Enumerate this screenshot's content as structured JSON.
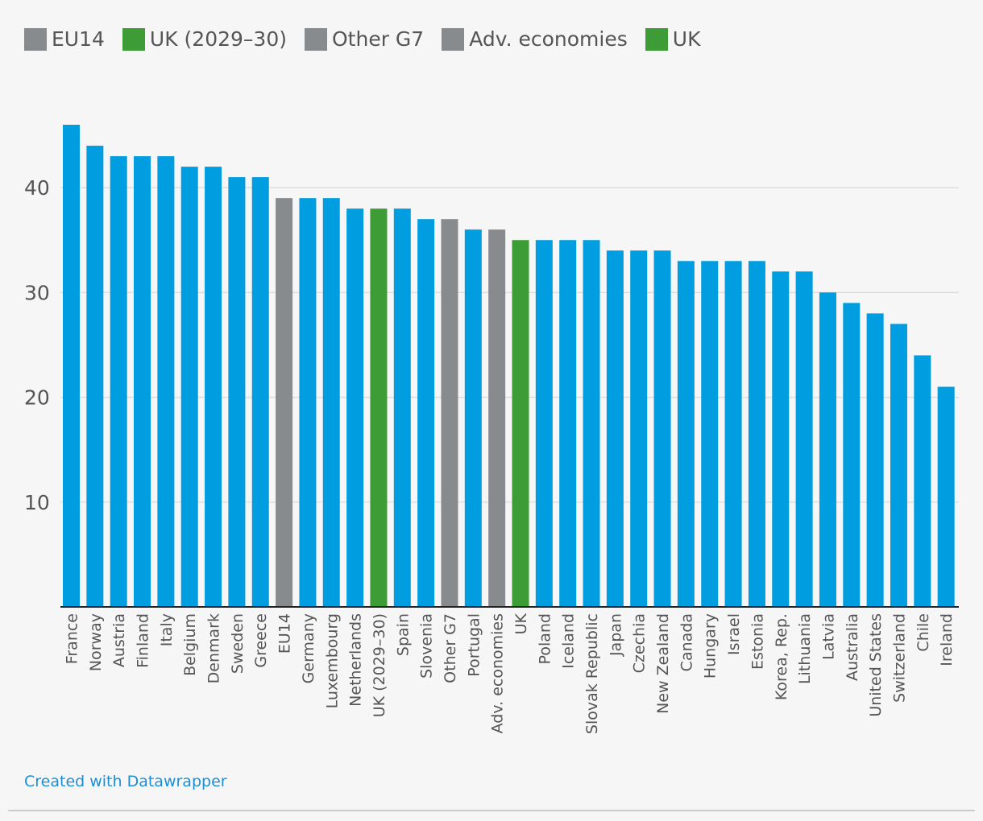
{
  "legend": [
    {
      "label": "EU14",
      "color": "#888b8e"
    },
    {
      "label": "UK (2029–30)",
      "color": "#3e9c36"
    },
    {
      "label": "Other G7",
      "color": "#888b8e"
    },
    {
      "label": "Adv. economies",
      "color": "#888b8e"
    },
    {
      "label": "UK",
      "color": "#3e9c36"
    }
  ],
  "colors": {
    "default": "#009ee0",
    "gray": "#888b8e",
    "green": "#3e9c36",
    "grid": "#dedede",
    "axis": "#222222",
    "tick": "#555555"
  },
  "chart_data": {
    "type": "bar",
    "title": "",
    "xlabel": "",
    "ylabel": "",
    "ylim": [
      0,
      46
    ],
    "yticks": [
      10,
      20,
      30,
      40
    ],
    "categories": [
      "France",
      "Norway",
      "Austria",
      "Finland",
      "Italy",
      "Belgium",
      "Denmark",
      "Sweden",
      "Greece",
      "EU14",
      "Germany",
      "Luxembourg",
      "Netherlands",
      "UK (2029–30)",
      "Spain",
      "Slovenia",
      "Other G7",
      "Portugal",
      "Adv. economies",
      "UK",
      "Poland",
      "Iceland",
      "Slovak Republic",
      "Japan",
      "Czechia",
      "New Zealand",
      "Canada",
      "Hungary",
      "Israel",
      "Estonia",
      "Korea, Rep.",
      "Lithuania",
      "Latvia",
      "Australia",
      "United States",
      "Switzerland",
      "Chile",
      "Ireland"
    ],
    "values": [
      46,
      44,
      43,
      43,
      43,
      42,
      42,
      41,
      41,
      39,
      39,
      39,
      38,
      38,
      38,
      37,
      37,
      36,
      36,
      35,
      35,
      35,
      35,
      34,
      34,
      34,
      33,
      33,
      33,
      33,
      32,
      32,
      30,
      29,
      28,
      27,
      24,
      21
    ],
    "groups": [
      "default",
      "default",
      "default",
      "default",
      "default",
      "default",
      "default",
      "default",
      "default",
      "gray",
      "default",
      "default",
      "default",
      "green",
      "default",
      "default",
      "gray",
      "default",
      "gray",
      "green",
      "default",
      "default",
      "default",
      "default",
      "default",
      "default",
      "default",
      "default",
      "default",
      "default",
      "default",
      "default",
      "default",
      "default",
      "default",
      "default",
      "default",
      "default"
    ]
  },
  "credit": "Created with Datawrapper"
}
